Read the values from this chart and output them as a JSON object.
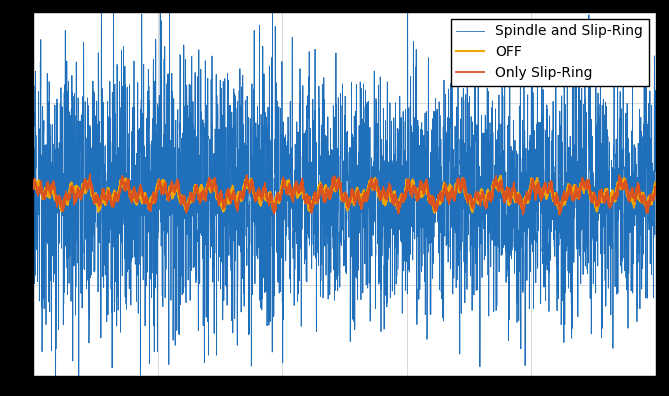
{
  "title": "",
  "xlabel": "",
  "ylabel": "",
  "legend_labels": [
    "Spindle and Slip-Ring",
    "Only Slip-Ring",
    "OFF"
  ],
  "colors": [
    "#1f6fba",
    "#d9541e",
    "#f0a500"
  ],
  "linewidths": [
    0.6,
    1.3,
    1.5
  ],
  "background_color": "#ffffff",
  "fig_facecolor": "#000000",
  "grid_color": "#aaaaaa",
  "n_points": 5000,
  "seed": 12,
  "ylim": [
    -5.0,
    5.0
  ],
  "xlim": [
    0,
    5000
  ],
  "figsize": [
    6.69,
    3.96
  ],
  "dpi": 100,
  "legend_fontsize": 10,
  "n_xticks": 5,
  "n_yticks": 4
}
